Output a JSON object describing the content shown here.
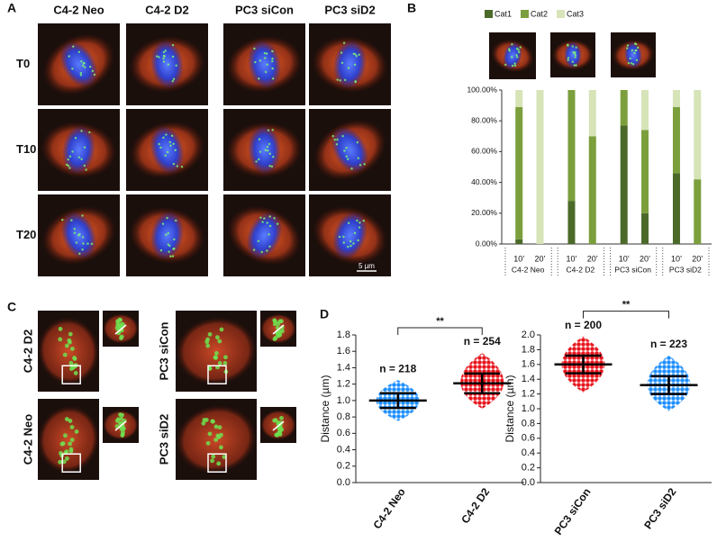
{
  "panel_labels": [
    "A",
    "B",
    "C",
    "D"
  ],
  "panel_a": {
    "columns": [
      "C4-2 Neo",
      "C4-2 D2",
      "PC3 siCon",
      "PC3 siD2"
    ],
    "rows": [
      "T0",
      "T10",
      "T20"
    ],
    "scale_bar": "5 µm"
  },
  "panel_c": {
    "labels": [
      "C4-2 D2",
      "C4-2 Neo",
      "PC3 siCon",
      "PC3 siD2"
    ]
  },
  "chart_data": [
    {
      "type": "stacked_bar",
      "categories": [
        "10’",
        "20’",
        "10’",
        "20’",
        "10’",
        "20’",
        "10’",
        "20’"
      ],
      "groups": [
        "C4-2 Neo",
        "C4-2 D2",
        "PC3 siCon",
        "PC3 siD2"
      ],
      "series": [
        {
          "name": "Cat1",
          "color": "#4b6a2a",
          "values": [
            3,
            0,
            28,
            0,
            77,
            20,
            46,
            0
          ]
        },
        {
          "name": "Cat2",
          "color": "#7b9f3c",
          "values": [
            86,
            0,
            72,
            70,
            23,
            54,
            43,
            42
          ]
        },
        {
          "name": "Cat3",
          "color": "#d6e4b8",
          "values": [
            11,
            100,
            0,
            30,
            0,
            26,
            11,
            58
          ]
        }
      ],
      "ylim": [
        0,
        100
      ],
      "yticks": [
        {
          "value": 0,
          "label": "0.00%"
        },
        {
          "value": 20,
          "label": "20.00%"
        },
        {
          "value": 40,
          "label": "40.00%"
        },
        {
          "value": 60,
          "label": "60.00%"
        },
        {
          "value": 80,
          "label": "80.00%"
        },
        {
          "value": 100,
          "label": "100.00%"
        }
      ],
      "legend": "top"
    },
    {
      "type": "dot_plot",
      "y_label": "Distance (µm)",
      "categories": [
        "C4-2 Neo",
        "C4-2 D2"
      ],
      "series": [
        {
          "name": "C4-2 Neo",
          "color": "#1e8fff",
          "mean": 1.0,
          "sd": 0.09,
          "range": [
            0.75,
            1.25
          ],
          "n_label": "n = 218"
        },
        {
          "name": "C4-2 D2",
          "color": "#e8151d",
          "mean": 1.21,
          "sd": 0.12,
          "range": [
            0.9,
            1.58
          ],
          "n_label": "n = 254"
        }
      ],
      "significance": "**",
      "ylim": [
        0,
        1.8
      ],
      "yticks": [
        {
          "value": 0,
          "label": "0.0"
        },
        0.2,
        0.4,
        0.6,
        0.8,
        {
          "value": 1,
          "label": "1.0"
        },
        1.2,
        1.4,
        1.6,
        1.8
      ]
    },
    {
      "type": "dot_plot",
      "y_label": "Distance (µm)",
      "categories": [
        "PC3 siCon",
        "PC3 siD2"
      ],
      "series": [
        {
          "name": "PC3 siCon",
          "color": "#e8151d",
          "mean": 1.6,
          "sd": 0.12,
          "range": [
            1.22,
            1.98
          ],
          "n_label": "n = 200"
        },
        {
          "name": "PC3 siD2",
          "color": "#1e8fff",
          "mean": 1.32,
          "sd": 0.12,
          "range": [
            0.97,
            1.72
          ],
          "n_label": "n = 223"
        }
      ],
      "significance": "**",
      "ylim": [
        0,
        2.0
      ],
      "yticks": [
        {
          "value": 0,
          "label": "0.0"
        },
        0.2,
        0.4,
        0.6,
        0.8,
        {
          "value": 1,
          "label": "1.0"
        },
        1.2,
        1.4,
        1.6,
        1.8,
        {
          "value": 2,
          "label": "2.0"
        }
      ]
    }
  ]
}
